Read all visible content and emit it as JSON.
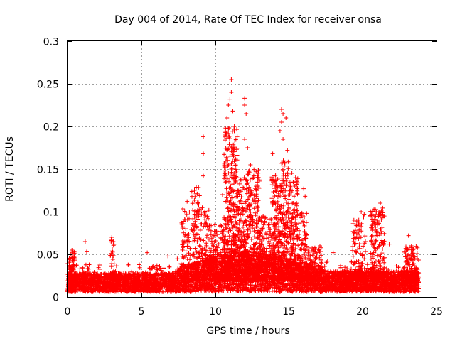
{
  "chart_data": {
    "type": "scatter",
    "title": "Day 004 of 2014, Rate Of TEC Index for receiver onsa",
    "xlabel": "GPS time / hours",
    "ylabel": "ROTI / TECUs",
    "xlim": [
      0,
      25
    ],
    "ylim": [
      0,
      0.3
    ],
    "xticks": [
      0,
      5,
      10,
      15,
      20,
      25
    ],
    "xtick_labels": [
      "0",
      "5",
      "10",
      "15",
      "20",
      "25"
    ],
    "yticks": [
      0,
      0.05,
      0.1,
      0.15,
      0.2,
      0.25,
      0.3
    ],
    "ytick_labels": [
      "0",
      "0.05",
      "0.1",
      "0.15",
      "0.2",
      "0.25",
      "0.3"
    ],
    "grid": true,
    "marker": "+",
    "color": "#ff0000",
    "series": [
      {
        "name": "ROTI",
        "x_range": [
          0.0,
          23.8
        ],
        "density_points": 7000,
        "baseline": [
          [
            0,
            0.018
          ],
          [
            7,
            0.018
          ],
          [
            8,
            0.025
          ],
          [
            10,
            0.035
          ],
          [
            12,
            0.04
          ],
          [
            14,
            0.035
          ],
          [
            16,
            0.025
          ],
          [
            18,
            0.02
          ],
          [
            23.8,
            0.02
          ]
        ],
        "notable_points": [
          {
            "x": 0.3,
            "y": 0.055
          },
          {
            "x": 0.2,
            "y": 0.05
          },
          {
            "x": 1.2,
            "y": 0.065
          },
          {
            "x": 1.3,
            "y": 0.053
          },
          {
            "x": 3.0,
            "y": 0.07
          },
          {
            "x": 3.1,
            "y": 0.065
          },
          {
            "x": 5.4,
            "y": 0.052
          },
          {
            "x": 6.8,
            "y": 0.048
          },
          {
            "x": 8.1,
            "y": 0.112
          },
          {
            "x": 8.6,
            "y": 0.125
          },
          {
            "x": 8.8,
            "y": 0.1
          },
          {
            "x": 9.2,
            "y": 0.188
          },
          {
            "x": 9.2,
            "y": 0.168
          },
          {
            "x": 9.2,
            "y": 0.142
          },
          {
            "x": 10.5,
            "y": 0.12
          },
          {
            "x": 10.7,
            "y": 0.19
          },
          {
            "x": 10.8,
            "y": 0.21
          },
          {
            "x": 10.9,
            "y": 0.225
          },
          {
            "x": 11.0,
            "y": 0.232
          },
          {
            "x": 11.1,
            "y": 0.255
          },
          {
            "x": 11.1,
            "y": 0.24
          },
          {
            "x": 11.2,
            "y": 0.218
          },
          {
            "x": 11.3,
            "y": 0.2
          },
          {
            "x": 11.0,
            "y": 0.165
          },
          {
            "x": 11.1,
            "y": 0.15
          },
          {
            "x": 11.4,
            "y": 0.135
          },
          {
            "x": 12.0,
            "y": 0.233
          },
          {
            "x": 12.0,
            "y": 0.225
          },
          {
            "x": 12.1,
            "y": 0.215
          },
          {
            "x": 12.0,
            "y": 0.185
          },
          {
            "x": 12.2,
            "y": 0.175
          },
          {
            "x": 12.4,
            "y": 0.155
          },
          {
            "x": 12.6,
            "y": 0.14
          },
          {
            "x": 12.9,
            "y": 0.13
          },
          {
            "x": 13.9,
            "y": 0.168
          },
          {
            "x": 14.0,
            "y": 0.142
          },
          {
            "x": 14.1,
            "y": 0.125
          },
          {
            "x": 14.5,
            "y": 0.22
          },
          {
            "x": 14.6,
            "y": 0.215
          },
          {
            "x": 14.5,
            "y": 0.205
          },
          {
            "x": 14.4,
            "y": 0.195
          },
          {
            "x": 14.6,
            "y": 0.185
          },
          {
            "x": 14.8,
            "y": 0.21
          },
          {
            "x": 14.9,
            "y": 0.172
          },
          {
            "x": 15.2,
            "y": 0.145
          },
          {
            "x": 15.4,
            "y": 0.13
          },
          {
            "x": 16.0,
            "y": 0.127
          },
          {
            "x": 16.1,
            "y": 0.118
          },
          {
            "x": 16.2,
            "y": 0.098
          },
          {
            "x": 17.1,
            "y": 0.06
          },
          {
            "x": 18.0,
            "y": 0.052
          },
          {
            "x": 19.4,
            "y": 0.065
          },
          {
            "x": 19.6,
            "y": 0.075
          },
          {
            "x": 19.9,
            "y": 0.1
          },
          {
            "x": 20.1,
            "y": 0.097
          },
          {
            "x": 20.8,
            "y": 0.085
          },
          {
            "x": 21.1,
            "y": 0.1
          },
          {
            "x": 21.2,
            "y": 0.11
          },
          {
            "x": 21.4,
            "y": 0.095
          },
          {
            "x": 21.8,
            "y": 0.062
          },
          {
            "x": 23.1,
            "y": 0.072
          },
          {
            "x": 23.3,
            "y": 0.06
          },
          {
            "x": 23.7,
            "y": 0.045
          }
        ],
        "bursts": [
          {
            "x0": 0.1,
            "x1": 0.5,
            "ymax": 0.055,
            "n": 60
          },
          {
            "x0": 2.9,
            "x1": 3.2,
            "ymax": 0.07,
            "n": 40
          },
          {
            "x0": 7.7,
            "x1": 8.3,
            "ymax": 0.11,
            "n": 80
          },
          {
            "x0": 8.4,
            "x1": 9.0,
            "ymax": 0.13,
            "n": 120
          },
          {
            "x0": 9.0,
            "x1": 9.6,
            "ymax": 0.105,
            "n": 100
          },
          {
            "x0": 9.6,
            "x1": 10.6,
            "ymax": 0.085,
            "n": 160
          },
          {
            "x0": 10.6,
            "x1": 11.5,
            "ymax": 0.2,
            "n": 380
          },
          {
            "x0": 11.5,
            "x1": 12.2,
            "ymax": 0.14,
            "n": 220
          },
          {
            "x0": 12.2,
            "x1": 13.0,
            "ymax": 0.15,
            "n": 240
          },
          {
            "x0": 13.0,
            "x1": 13.8,
            "ymax": 0.095,
            "n": 160
          },
          {
            "x0": 13.8,
            "x1": 14.4,
            "ymax": 0.145,
            "n": 220
          },
          {
            "x0": 14.4,
            "x1": 15.0,
            "ymax": 0.16,
            "n": 220
          },
          {
            "x0": 15.0,
            "x1": 15.6,
            "ymax": 0.14,
            "n": 180
          },
          {
            "x0": 15.6,
            "x1": 16.2,
            "ymax": 0.1,
            "n": 140
          },
          {
            "x0": 16.2,
            "x1": 17.2,
            "ymax": 0.06,
            "n": 140
          },
          {
            "x0": 19.3,
            "x1": 20.2,
            "ymax": 0.095,
            "n": 120
          },
          {
            "x0": 20.5,
            "x1": 21.5,
            "ymax": 0.105,
            "n": 180
          },
          {
            "x0": 22.8,
            "x1": 23.8,
            "ymax": 0.06,
            "n": 120
          }
        ]
      }
    ]
  }
}
